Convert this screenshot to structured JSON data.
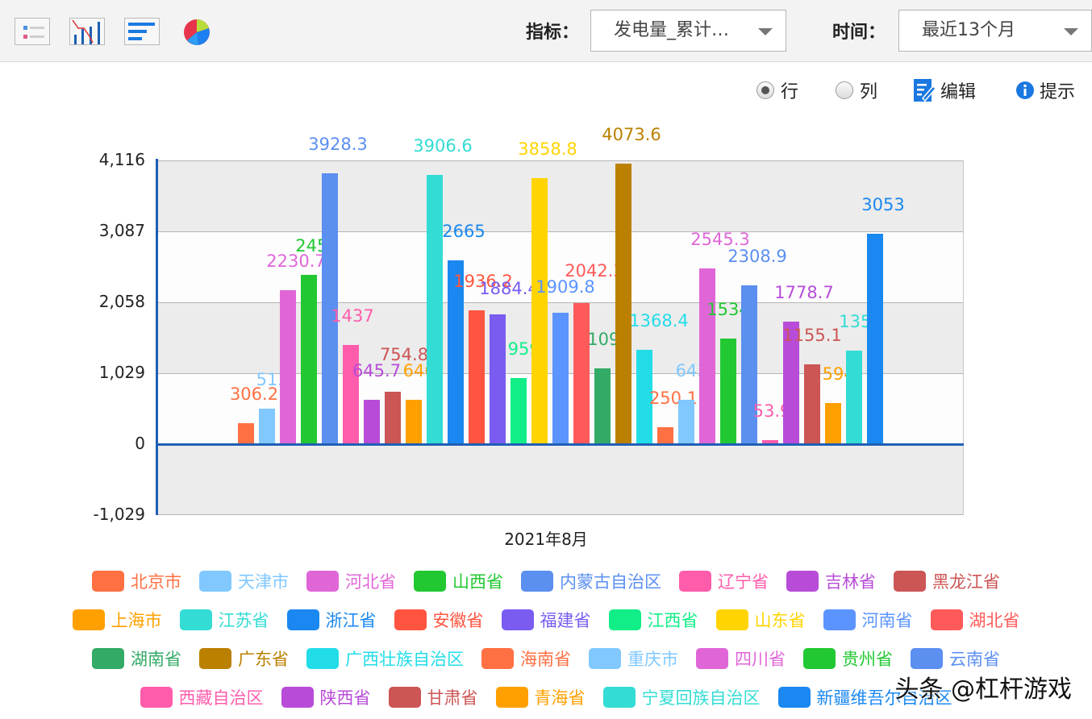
{
  "toolbar": {
    "view_icons": [
      "table-icon",
      "line-bar-chart-icon",
      "horizontal-bar-chart-icon",
      "pie-chart-icon"
    ],
    "indicator_label": "指标：",
    "indicator_value": "发电量_累计…",
    "time_label": "时间：",
    "time_value": "最近13个月"
  },
  "options": {
    "row_label": "行",
    "col_label": "列",
    "row_selected": true,
    "edit_label": "编辑",
    "hint_label": "提示"
  },
  "chart_data": {
    "type": "bar",
    "title": "",
    "xlabel": "",
    "ylabel": "",
    "categories": [
      "2021年8月"
    ],
    "ylim": [
      -1029,
      4116
    ],
    "yticks": [
      "4,116",
      "3,087",
      "2,058",
      "1,029",
      "0",
      "-1,029"
    ],
    "grid": true,
    "legend_position": "bottom",
    "series": [
      {
        "name": "北京市",
        "values": [
          306.2
        ],
        "label": "306.2",
        "color": "#ff7043"
      },
      {
        "name": "天津市",
        "values": [
          513.0
        ],
        "label": "513.",
        "color": "#80c8ff"
      },
      {
        "name": "河北省",
        "values": [
          2230.7
        ],
        "label": "2230.7",
        "color": "#e066d8"
      },
      {
        "name": "山西省",
        "values": [
          2456.0
        ],
        "label": "2456",
        "color": "#22c832"
      },
      {
        "name": "内蒙古自治区",
        "values": [
          3928.3
        ],
        "label": "3928.3",
        "color": "#5b8ff0"
      },
      {
        "name": "辽宁省",
        "values": [
          1437.0
        ],
        "label": "1437",
        "color": "#ff5cac"
      },
      {
        "name": "吉林省",
        "values": [
          645.7
        ],
        "label": "645.7",
        "color": "#b84cd8"
      },
      {
        "name": "黑龙江省",
        "values": [
          754.8
        ],
        "label": "754.8",
        "color": "#cc5555"
      },
      {
        "name": "上海市",
        "values": [
          646.0
        ],
        "label": "646.",
        "color": "#ffa000"
      },
      {
        "name": "江苏省",
        "values": [
          3906.6
        ],
        "label": "3906.6",
        "color": "#33dcd4"
      },
      {
        "name": "浙江省",
        "values": [
          2665.0
        ],
        "label": "2665",
        "color": "#1a88f0"
      },
      {
        "name": "安徽省",
        "values": [
          1936.2
        ],
        "label": "1936.2",
        "color": "#ff5540"
      },
      {
        "name": "福建省",
        "values": [
          1884.4
        ],
        "label": "1884.4",
        "color": "#7a5cf0"
      },
      {
        "name": "江西省",
        "values": [
          959.0
        ],
        "label": "959.",
        "color": "#11ee88"
      },
      {
        "name": "山东省",
        "values": [
          3858.8
        ],
        "label": "3858.8",
        "color": "#ffd400"
      },
      {
        "name": "河南省",
        "values": [
          1909.8
        ],
        "label": "1909.8",
        "color": "#5b94ff"
      },
      {
        "name": "湖北省",
        "values": [
          2042.3
        ],
        "label": "2042.3",
        "color": "#ff5a5a"
      },
      {
        "name": "湖南省",
        "values": [
          1094.0
        ],
        "label": "1094",
        "color": "#33aa66"
      },
      {
        "name": "广东省",
        "values": [
          4073.6
        ],
        "label": "4073.6",
        "color": "#bb8000"
      },
      {
        "name": "广西壮族自治区",
        "values": [
          1368.4
        ],
        "label": "1368.4",
        "color": "#22dde8"
      },
      {
        "name": "海南省",
        "values": [
          250.1
        ],
        "label": "250.1",
        "color": "#ff7043"
      },
      {
        "name": "重庆市",
        "values": [
          643.0
        ],
        "label": "643.",
        "color": "#80c8ff"
      },
      {
        "name": "四川省",
        "values": [
          2545.3
        ],
        "label": "2545.3",
        "color": "#e066d8"
      },
      {
        "name": "贵州省",
        "values": [
          1534.0
        ],
        "label": "1534",
        "color": "#22c832"
      },
      {
        "name": "云南省",
        "values": [
          2308.9
        ],
        "label": "2308.9",
        "color": "#5b8ff0"
      },
      {
        "name": "西藏自治区",
        "values": [
          53.9
        ],
        "label": "53.9",
        "color": "#ff5cac"
      },
      {
        "name": "陕西省",
        "values": [
          1778.7
        ],
        "label": "1778.7",
        "color": "#b84cd8"
      },
      {
        "name": "甘肃省",
        "values": [
          1155.1
        ],
        "label": "1155.1",
        "color": "#cc5555"
      },
      {
        "name": "青海省",
        "values": [
          594.0
        ],
        "label": "594.",
        "color": "#ffa000"
      },
      {
        "name": "宁夏回族自治区",
        "values": [
          1357.0
        ],
        "label": "1357",
        "color": "#33dcd4"
      },
      {
        "name": "新疆维吾尔自治区",
        "values": [
          3053.0
        ],
        "label": "3053",
        "color": "#1a88f0"
      }
    ]
  },
  "legend_rows": [
    [
      0,
      1,
      2,
      3,
      4,
      5,
      6,
      7
    ],
    [
      8,
      9,
      10,
      11,
      12,
      13,
      14,
      15,
      16
    ],
    [
      17,
      18,
      19,
      20,
      21,
      22,
      23,
      24
    ],
    [
      25,
      26,
      27,
      28,
      29,
      30
    ]
  ],
  "watermark": "头条 @杠杆游戏"
}
